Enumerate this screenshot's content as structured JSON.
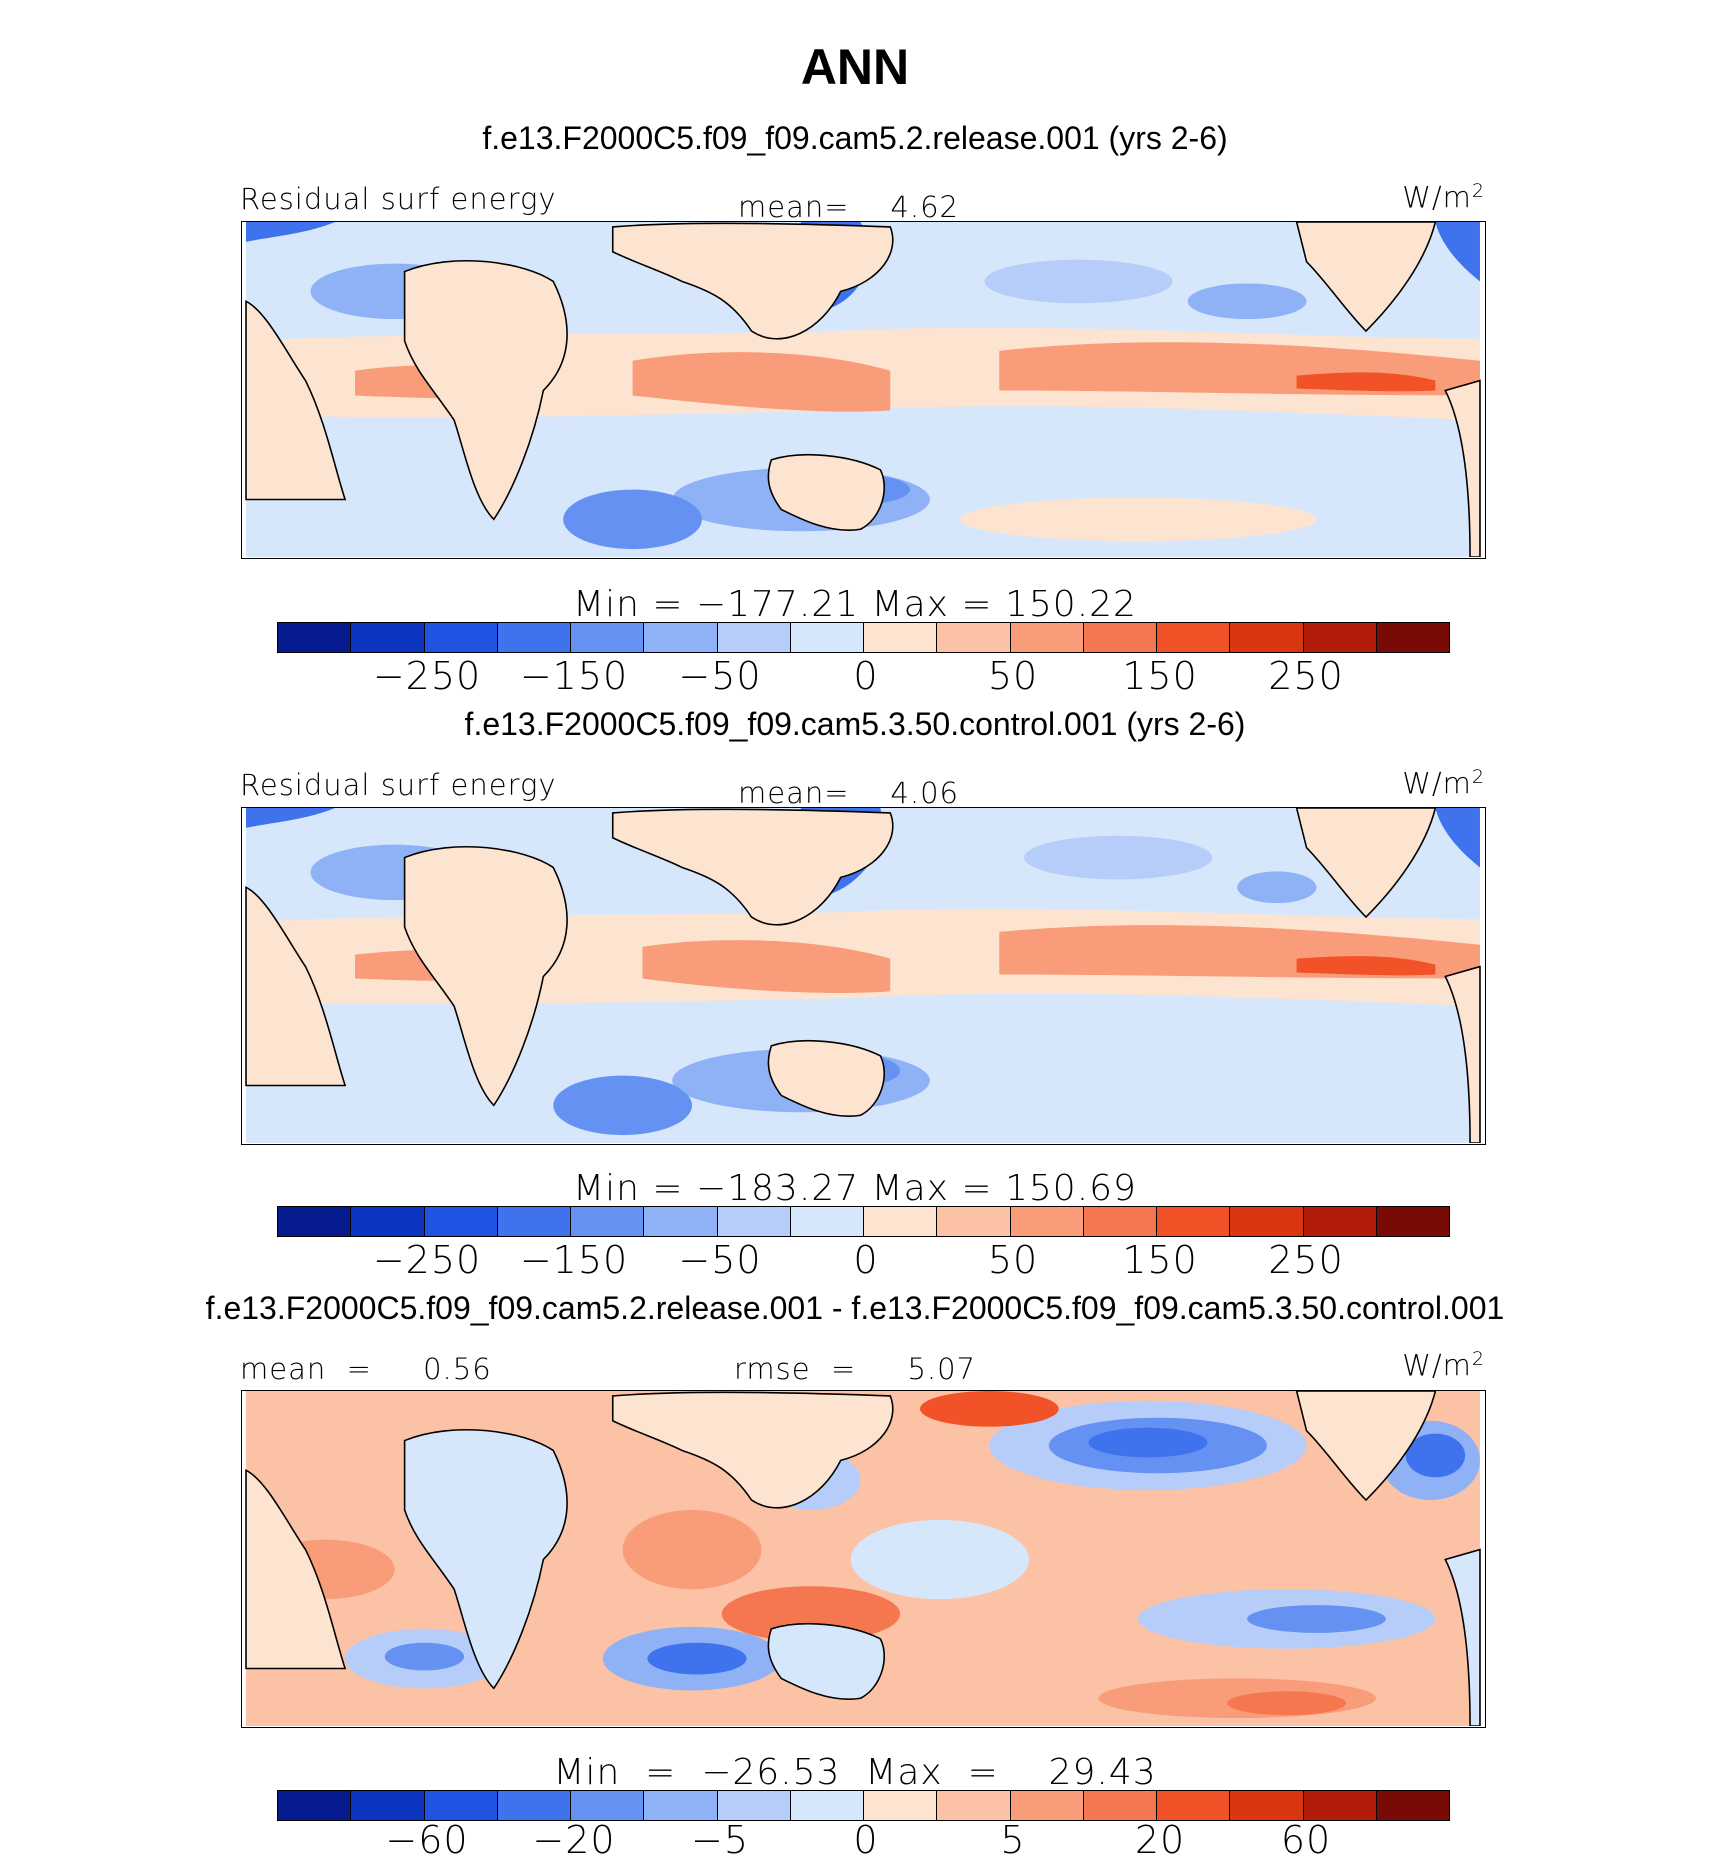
{
  "figure": {
    "title": "ANN",
    "units": "W/m"
  },
  "colors": {
    "positive": [
      "#fde4d1",
      "#fbc2a6",
      "#f89c79",
      "#f5774f",
      "#f15227",
      "#d93611",
      "#b21c0b",
      "#7a0a05"
    ],
    "negative": [
      "#d7e7fb",
      "#b5cdf8",
      "#8fb1f5",
      "#6592f2",
      "#3e73ed",
      "#1f54e3",
      "#0c35c2",
      "#061b8e"
    ],
    "ocean_pos": "#fcd6c2",
    "ocean_neg": "#c3d9f9",
    "land": "#fde4d1",
    "coast": "#000000"
  },
  "panels": [
    {
      "id": "top",
      "case_title": "f.e13.F2000C5.f09_f09.cam5.2.release.001 (yrs 2-6)",
      "left_label": "Residual surf energy",
      "center_label": "mean=    4.62",
      "units": "W/m",
      "units_sup": "2",
      "min_max": "Min  =  −177.21  Max  =  150.22",
      "colorbar_ticks": [
        "−250",
        "−150",
        "−50",
        "0",
        "50",
        "150",
        "250"
      ]
    },
    {
      "id": "middle",
      "case_title": "f.e13.F2000C5.f09_f09.cam5.3.50.control.001 (yrs 2-6)",
      "left_label": "Residual surf energy",
      "center_label": "mean=    4.06",
      "units": "W/m",
      "units_sup": "2",
      "min_max": "Min  =  −183.27  Max  =  150.69",
      "colorbar_ticks": [
        "−250",
        "−150",
        "−50",
        "0",
        "50",
        "150",
        "250"
      ]
    },
    {
      "id": "bottom",
      "case_title": "f.e13.F2000C5.f09_f09.cam5.2.release.001 - f.e13.F2000C5.f09_f09.cam5.3.50.control.001",
      "left_label": "mean  =     0.56",
      "center_label": "rmse  =     5.07",
      "units": "W/m",
      "units_sup": "2",
      "min_max": "Min  =  −26.53  Max  =    29.43",
      "colorbar_ticks": [
        "−60",
        "−20",
        "−5",
        "0",
        "5",
        "20",
        "60"
      ]
    }
  ]
}
